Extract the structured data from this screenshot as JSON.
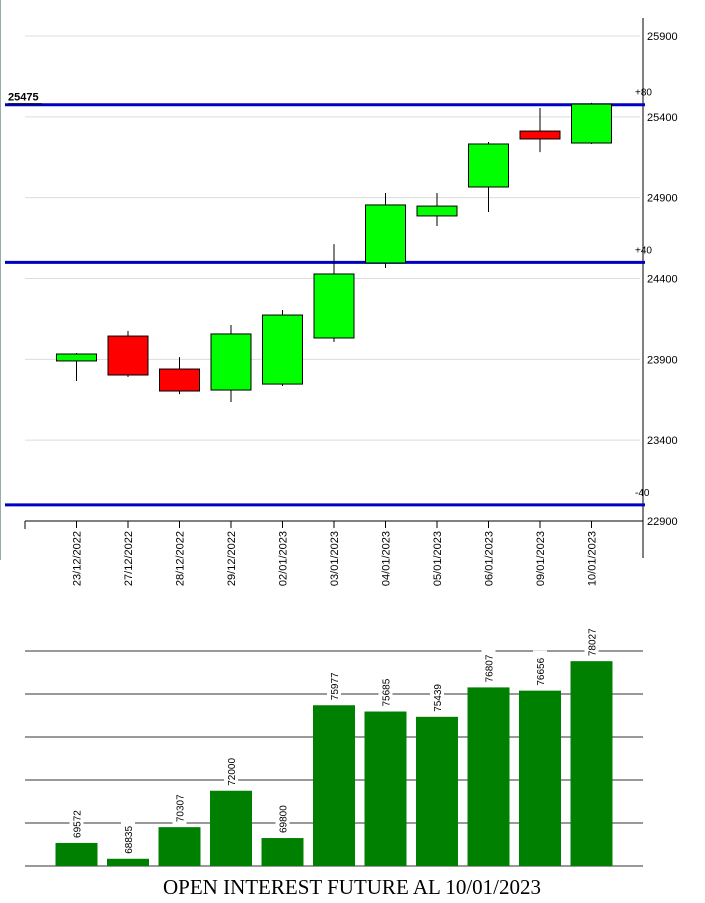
{
  "chart_data": [
    {
      "type": "candlestick",
      "categories": [
        "23/12/2022",
        "27/12/2022",
        "28/12/2022",
        "29/12/2022",
        "02/01/2023",
        "03/01/2023",
        "04/01/2023",
        "05/01/2023",
        "06/01/2023",
        "09/01/2023",
        "10/01/2023"
      ],
      "open": [
        23890,
        24044,
        23840,
        23710,
        23747,
        24032,
        24496,
        24787,
        24966,
        25312,
        25238
      ],
      "high": [
        23939,
        24075,
        23914,
        24112,
        24205,
        24613,
        24929,
        24929,
        25244,
        25455,
        25486
      ],
      "low": [
        23766,
        23791,
        23685,
        23636,
        23735,
        24007,
        24465,
        24725,
        24811,
        25182,
        25232
      ],
      "close": [
        23933,
        23803,
        23704,
        24057,
        24174,
        24428,
        24855,
        24848,
        25232,
        25263,
        25479
      ],
      "up_color": "#00ff00",
      "down_color": "#ff0000",
      "ylim": [
        22900,
        25900
      ],
      "yticks": [
        22900,
        23400,
        23900,
        24400,
        24900,
        25400,
        25900
      ],
      "grid": true,
      "levels": [
        {
          "value": 25475,
          "label": "+80",
          "show_value": true,
          "color": "#0000c0"
        },
        {
          "value": 24500,
          "label": "+40",
          "color": "#0000c0"
        },
        {
          "value": 23000,
          "label": "-40",
          "color": "#0000c0"
        }
      ]
    },
    {
      "type": "bar",
      "title": "OPEN INTEREST FUTURE AL 10/01/2023",
      "values": [
        69572,
        68835,
        70307,
        72000,
        69800,
        75977,
        75685,
        75439,
        76807,
        76656,
        78027
      ],
      "color": "#008000",
      "ylim": [
        68500,
        78500
      ],
      "yticks": [
        68500,
        70500,
        72500,
        74500,
        76500,
        78500
      ],
      "grid": true
    }
  ]
}
